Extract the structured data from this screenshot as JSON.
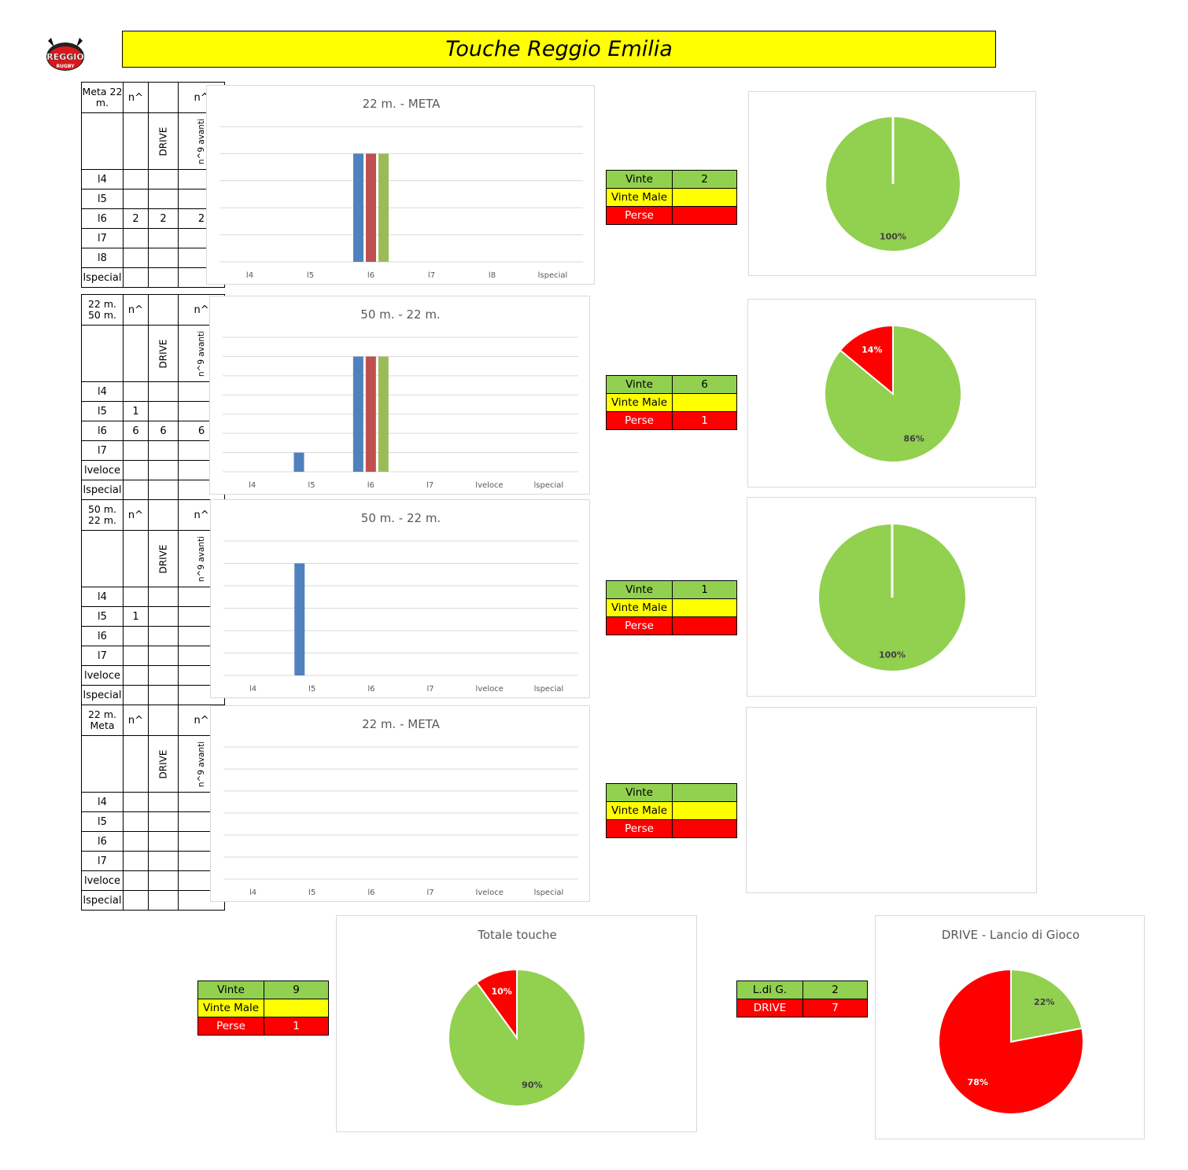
{
  "title": "Touche Reggio Emilia",
  "logo": {
    "text": "REGGIO",
    "subtext": "RUGBY",
    "color": "#d7191c"
  },
  "colors": {
    "blue": "#4f81bd",
    "red": "#c0504d",
    "green": "#9bbb59",
    "pie_green": "#92d050",
    "pie_red": "#ff0000",
    "grid": "#d9d9d9"
  },
  "sections": [
    {
      "table": {
        "header": [
          "Meta 22 m.",
          "n^",
          "",
          "n^"
        ],
        "subheader": [
          "",
          "",
          "DRIVE",
          "n^9 avanti"
        ],
        "rows": [
          [
            "l4",
            "",
            "",
            ""
          ],
          [
            "l5",
            "",
            "",
            ""
          ],
          [
            "l6",
            "2",
            "2",
            "2"
          ],
          [
            "l7",
            "",
            "",
            ""
          ],
          [
            "l8",
            "",
            "",
            ""
          ],
          [
            "lspecial",
            "",
            "",
            ""
          ]
        ]
      },
      "summary": {
        "vinte_label": "Vinte",
        "vinte_value": "2",
        "vinte_male_label": "Vinte Male",
        "vinte_male_value": "",
        "perse_label": "Perse",
        "perse_value": ""
      },
      "pie": {
        "show": true,
        "labels": [
          "100%",
          ""
        ]
      }
    },
    {
      "table": {
        "header": [
          "22 m. 50 m.",
          "n^",
          "",
          "n^"
        ],
        "subheader": [
          "",
          "",
          "DRIVE",
          "n^9 avanti"
        ],
        "rows": [
          [
            "l4",
            "",
            "",
            ""
          ],
          [
            "l5",
            "1",
            "",
            ""
          ],
          [
            "l6",
            "6",
            "6",
            "6"
          ],
          [
            "l7",
            "",
            "",
            ""
          ],
          [
            "lveloce",
            "",
            "",
            ""
          ],
          [
            "lspecial",
            "",
            "",
            ""
          ]
        ]
      },
      "summary": {
        "vinte_label": "Vinte",
        "vinte_value": "6",
        "vinte_male_label": "Vinte Male",
        "vinte_male_value": "",
        "perse_label": "Perse",
        "perse_value": "1"
      },
      "pie": {
        "show": true,
        "labels": [
          "86%",
          "14%"
        ]
      }
    },
    {
      "table": {
        "header": [
          "50 m. 22 m.",
          "n^",
          "",
          "n^"
        ],
        "subheader": [
          "",
          "",
          "DRIVE",
          "n^9 avanti"
        ],
        "rows": [
          [
            "l4",
            "",
            "",
            ""
          ],
          [
            "l5",
            "1",
            "",
            ""
          ],
          [
            "l6",
            "",
            "",
            ""
          ],
          [
            "l7",
            "",
            "",
            ""
          ],
          [
            "lveloce",
            "",
            "",
            ""
          ],
          [
            "lspecial",
            "",
            "",
            ""
          ]
        ]
      },
      "summary": {
        "vinte_label": "Vinte",
        "vinte_value": "1",
        "vinte_male_label": "Vinte Male",
        "vinte_male_value": "",
        "perse_label": "Perse",
        "perse_value": ""
      },
      "pie": {
        "show": true,
        "labels": [
          "100%",
          ""
        ]
      }
    },
    {
      "table": {
        "header": [
          "22 m. Meta",
          "n^",
          "",
          "n^"
        ],
        "subheader": [
          "",
          "",
          "DRIVE",
          "n^9 avanti"
        ],
        "rows": [
          [
            "l4",
            "",
            "",
            ""
          ],
          [
            "l5",
            "",
            "",
            ""
          ],
          [
            "l6",
            "",
            "",
            ""
          ],
          [
            "l7",
            "",
            "",
            ""
          ],
          [
            "lveloce",
            "",
            "",
            ""
          ],
          [
            "lspecial",
            "",
            "",
            ""
          ]
        ]
      },
      "summary": {
        "vinte_label": "Vinte",
        "vinte_value": "",
        "vinte_male_label": "Vinte Male",
        "vinte_male_value": "",
        "perse_label": "Perse",
        "perse_value": ""
      },
      "pie": {
        "show": false,
        "labels": [
          "",
          ""
        ]
      }
    }
  ],
  "totals": {
    "summary": {
      "vinte_label": "Vinte",
      "vinte_value": "9",
      "vinte_male_label": "Vinte Male",
      "vinte_male_value": "",
      "perse_label": "Perse",
      "perse_value": "1"
    },
    "drive_summary": {
      "ldg_label": "L.di G.",
      "ldg_value": "2",
      "drive_label": "DRIVE",
      "drive_value": "7"
    }
  },
  "chart_data": [
    {
      "type": "bar",
      "title": "22 m. - META",
      "categories": [
        "l4",
        "l5",
        "l6",
        "l7",
        "l8",
        "lspecial"
      ],
      "series": [
        {
          "values": [
            0,
            0,
            2,
            0,
            0,
            0
          ]
        },
        {
          "values": [
            0,
            0,
            2,
            0,
            0,
            0
          ]
        },
        {
          "values": [
            0,
            0,
            2,
            0,
            0,
            0
          ]
        }
      ],
      "ylim": [
        0,
        2.5
      ],
      "grid": true
    },
    {
      "type": "bar",
      "title": "50 m. - 22 m.",
      "categories": [
        "l4",
        "l5",
        "l6",
        "l7",
        "lveloce",
        "lspecial"
      ],
      "series": [
        {
          "values": [
            0,
            1,
            6,
            0,
            0,
            0
          ]
        },
        {
          "values": [
            0,
            0,
            6,
            0,
            0,
            0
          ]
        },
        {
          "values": [
            0,
            0,
            6,
            0,
            0,
            0
          ]
        }
      ],
      "ylim": [
        0,
        7
      ],
      "grid": true
    },
    {
      "type": "bar",
      "title": "50 m. - 22 m.",
      "categories": [
        "l4",
        "l5",
        "l6",
        "l7",
        "lveloce",
        "lspecial"
      ],
      "series": [
        {
          "values": [
            0,
            1,
            0,
            0,
            0,
            0
          ]
        },
        {
          "values": [
            0,
            0,
            0,
            0,
            0,
            0
          ]
        },
        {
          "values": [
            0,
            0,
            0,
            0,
            0,
            0
          ]
        }
      ],
      "ylim": [
        0,
        1.2
      ],
      "grid": true
    },
    {
      "type": "bar",
      "title": "22 m. - META",
      "categories": [
        "l4",
        "l5",
        "l6",
        "l7",
        "lveloce",
        "lspecial"
      ],
      "series": [
        {
          "values": [
            0,
            0,
            0,
            0,
            0,
            0
          ]
        },
        {
          "values": [
            0,
            0,
            0,
            0,
            0,
            0
          ]
        },
        {
          "values": [
            0,
            0,
            0,
            0,
            0,
            0
          ]
        }
      ],
      "ylim": [
        0,
        1
      ],
      "grid": true
    },
    {
      "type": "pie",
      "title": "",
      "slices": [
        {
          "value": 100,
          "label": "100%"
        }
      ]
    },
    {
      "type": "pie",
      "title": "",
      "slices": [
        {
          "value": 86,
          "label": "86%"
        },
        {
          "value": 14,
          "label": "14%"
        }
      ]
    },
    {
      "type": "pie",
      "title": "",
      "slices": [
        {
          "value": 100,
          "label": "100%"
        }
      ]
    },
    {
      "type": "pie",
      "title": "",
      "slices": []
    },
    {
      "type": "pie",
      "title": "Totale  touche",
      "slices": [
        {
          "value": 90,
          "label": "90%"
        },
        {
          "value": 10,
          "label": "10%"
        }
      ]
    },
    {
      "type": "pie",
      "title": "DRIVE - Lancio di Gioco",
      "slices": [
        {
          "value": 22,
          "label": "22%"
        },
        {
          "value": 78,
          "label": "78%"
        }
      ]
    }
  ]
}
